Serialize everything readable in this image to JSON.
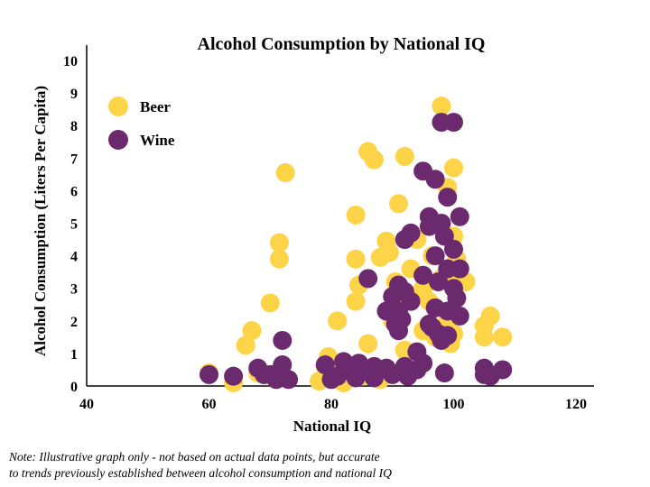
{
  "chart_data": {
    "type": "scatter",
    "title": "Alcohol Consumption by National IQ",
    "xlabel": "National IQ",
    "ylabel": "Alcohol Consumption (Liters Per Capita)",
    "xlim": [
      40,
      120
    ],
    "ylim": [
      0,
      10
    ],
    "xticks": [
      "40",
      "60",
      "80",
      "100",
      "120"
    ],
    "yticks": [
      "0",
      "1",
      "2",
      "3",
      "4",
      "5",
      "6",
      "7",
      "8",
      "9",
      "10"
    ],
    "legend_position": "top-left",
    "series": [
      {
        "name": "Beer",
        "color": "#FDD447",
        "points": [
          [
            60,
            0.4
          ],
          [
            64,
            0.1
          ],
          [
            66,
            1.25
          ],
          [
            67,
            1.7
          ],
          [
            68,
            0.4
          ],
          [
            70,
            2.55
          ],
          [
            71,
            0.4
          ],
          [
            71.5,
            4.4
          ],
          [
            71.5,
            3.9
          ],
          [
            72.5,
            6.55
          ],
          [
            72,
            0.3
          ],
          [
            78,
            0.15
          ],
          [
            79,
            0.6
          ],
          [
            79.5,
            0.9
          ],
          [
            81,
            2.0
          ],
          [
            82,
            0.1
          ],
          [
            83,
            0.5
          ],
          [
            84,
            2.6
          ],
          [
            84,
            3.9
          ],
          [
            84,
            5.25
          ],
          [
            84.5,
            3.1
          ],
          [
            85,
            0.3
          ],
          [
            86,
            7.2
          ],
          [
            86,
            1.3
          ],
          [
            87,
            6.95
          ],
          [
            87,
            0.4
          ],
          [
            88,
            0.2
          ],
          [
            88,
            3.95
          ],
          [
            89,
            4.45
          ],
          [
            89.5,
            4.1
          ],
          [
            90,
            2.0
          ],
          [
            90.5,
            3.2
          ],
          [
            91,
            5.6
          ],
          [
            91,
            2.5
          ],
          [
            92,
            1.1
          ],
          [
            92,
            7.05
          ],
          [
            93,
            0.8
          ],
          [
            93,
            3.6
          ],
          [
            94,
            2.8
          ],
          [
            94,
            4.5
          ],
          [
            95,
            1.7
          ],
          [
            95,
            3.0
          ],
          [
            96,
            2.6
          ],
          [
            96.5,
            4.0
          ],
          [
            97,
            1.5
          ],
          [
            97,
            2.4
          ],
          [
            98,
            8.6
          ],
          [
            98,
            3.3
          ],
          [
            99,
            6.1
          ],
          [
            99,
            2.0
          ],
          [
            99.5,
            1.3
          ],
          [
            100,
            6.7
          ],
          [
            100,
            4.6
          ],
          [
            100,
            1.6
          ],
          [
            100.5,
            3.9
          ],
          [
            101,
            3.6
          ],
          [
            101,
            3.2
          ],
          [
            102,
            3.2
          ],
          [
            105,
            1.5
          ],
          [
            105,
            1.85
          ],
          [
            106,
            2.15
          ],
          [
            108,
            1.5
          ]
        ]
      },
      {
        "name": "Wine",
        "color": "#6B2A6E",
        "points": [
          [
            60,
            0.35
          ],
          [
            64,
            0.3
          ],
          [
            68,
            0.55
          ],
          [
            69,
            0.35
          ],
          [
            70,
            0.35
          ],
          [
            71,
            0.2
          ],
          [
            72,
            1.4
          ],
          [
            72,
            0.65
          ],
          [
            73,
            0.2
          ],
          [
            79,
            0.65
          ],
          [
            80,
            0.2
          ],
          [
            81,
            0.3
          ],
          [
            82,
            0.75
          ],
          [
            83,
            0.55
          ],
          [
            84,
            0.25
          ],
          [
            84.5,
            0.7
          ],
          [
            85,
            0.45
          ],
          [
            86,
            3.3
          ],
          [
            87,
            0.6
          ],
          [
            87,
            0.25
          ],
          [
            89,
            2.3
          ],
          [
            89,
            0.55
          ],
          [
            90,
            0.35
          ],
          [
            90,
            2.75
          ],
          [
            90.5,
            1.9
          ],
          [
            91,
            2.3
          ],
          [
            91,
            3.1
          ],
          [
            91,
            1.7
          ],
          [
            91.5,
            2.05
          ],
          [
            92,
            4.5
          ],
          [
            92,
            2.9
          ],
          [
            92,
            0.6
          ],
          [
            92.5,
            0.3
          ],
          [
            93,
            2.6
          ],
          [
            93,
            4.7
          ],
          [
            94,
            1.05
          ],
          [
            94,
            0.5
          ],
          [
            95,
            0.7
          ],
          [
            95,
            3.4
          ],
          [
            95,
            6.6
          ],
          [
            96,
            5.2
          ],
          [
            96,
            4.9
          ],
          [
            96,
            1.9
          ],
          [
            96.5,
            1.8
          ],
          [
            97,
            2.4
          ],
          [
            97,
            6.35
          ],
          [
            97,
            4.0
          ],
          [
            97.5,
            1.6
          ],
          [
            97.5,
            3.2
          ],
          [
            98,
            8.1
          ],
          [
            98,
            5.0
          ],
          [
            98,
            1.4
          ],
          [
            98.5,
            4.6
          ],
          [
            98.5,
            0.4
          ],
          [
            99,
            5.8
          ],
          [
            99,
            3.6
          ],
          [
            99,
            2.3
          ],
          [
            99,
            1.55
          ],
          [
            100,
            8.1
          ],
          [
            100,
            4.2
          ],
          [
            100,
            3.0
          ],
          [
            100.5,
            2.7
          ],
          [
            101,
            5.2
          ],
          [
            101,
            3.6
          ],
          [
            101,
            2.15
          ],
          [
            105,
            0.55
          ],
          [
            105,
            0.35
          ],
          [
            106,
            0.3
          ],
          [
            108,
            0.5
          ]
        ]
      }
    ]
  },
  "note": {
    "line1": "Note: Illustrative graph only - not based on actual data points, but accurate",
    "line2": "to trends previously established between alcohol consumption and national IQ"
  }
}
